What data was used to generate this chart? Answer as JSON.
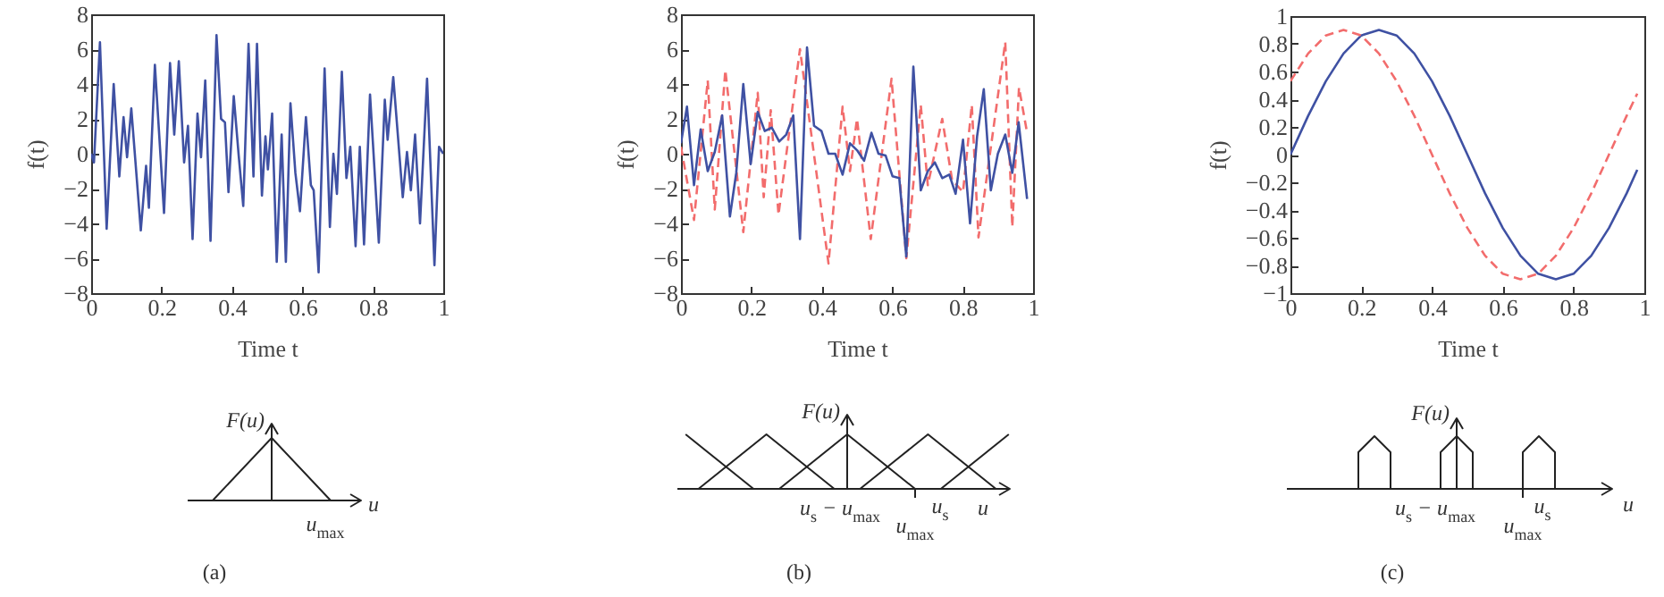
{
  "chart_data": [
    {
      "type": "line",
      "xlabel": "Time t",
      "ylabel": "f(t)",
      "xlim": [
        0,
        1
      ],
      "ylim": [
        -8,
        8
      ],
      "xticks": [
        0,
        0.2,
        0.4,
        0.6,
        0.8,
        1
      ],
      "yticks": [
        -8,
        -6,
        -4,
        -2,
        0,
        2,
        4,
        6,
        8
      ],
      "grid": false,
      "series": [
        {
          "color": "#3f51a3",
          "line_style": "solid",
          "x": [
            0,
            0.008,
            0.025,
            0.044,
            0.064,
            0.08,
            0.092,
            0.102,
            0.114,
            0.141,
            0.156,
            0.164,
            0.181,
            0.207,
            0.224,
            0.236,
            0.249,
            0.264,
            0.275,
            0.288,
            0.302,
            0.312,
            0.324,
            0.339,
            0.356,
            0.369,
            0.38,
            0.39,
            0.405,
            0.419,
            0.432,
            0.447,
            0.461,
            0.471,
            0.485,
            0.495,
            0.502,
            0.514,
            0.527,
            0.541,
            0.553,
            0.566,
            0.58,
            0.593,
            0.61,
            0.624,
            0.632,
            0.646,
            0.663,
            0.678,
            0.688,
            0.698,
            0.712,
            0.725,
            0.736,
            0.751,
            0.763,
            0.775,
            0.792,
            0.8,
            0.817,
            0.834,
            0.842,
            0.858,
            0.885,
            0.897,
            0.908,
            0.92,
            0.934,
            0.954,
            0.975,
            0.988,
            1
          ],
          "values": [
            0,
            -0.5,
            6.4,
            -4.3,
            4.0,
            -1.3,
            2.1,
            -0.2,
            2.6,
            -4.4,
            -0.7,
            -3.1,
            5.1,
            -3.4,
            5.2,
            1.1,
            5.3,
            -0.5,
            1.6,
            -4.9,
            2.3,
            -0.2,
            4.2,
            -5.0,
            6.8,
            2.0,
            1.8,
            -2.2,
            3.3,
            -0.1,
            -3.0,
            6.3,
            -1.3,
            6.3,
            -2.4,
            1.0,
            -0.9,
            2.3,
            -6.2,
            1.1,
            -6.2,
            2.9,
            -1.1,
            -3.3,
            2.1,
            -1.8,
            -2.1,
            -6.8,
            4.9,
            -4.2,
            0,
            -2.3,
            4.7,
            -1.4,
            0.4,
            -5.3,
            0.4,
            -5.2,
            3.4,
            0.7,
            -5.1,
            3.1,
            0.8,
            4.4,
            -2.5,
            0.1,
            -2.1,
            1.1,
            -4.0,
            4.3,
            -6.4,
            0.4,
            0
          ]
        }
      ]
    },
    {
      "type": "line",
      "xlabel": "Time t",
      "ylabel": "f(t)",
      "xlim": [
        0,
        1
      ],
      "ylim": [
        -8,
        8
      ],
      "xticks": [
        0,
        0.2,
        0.4,
        0.6,
        0.8,
        1
      ],
      "yticks": [
        -8,
        -6,
        -4,
        -2,
        0,
        2,
        4,
        6,
        8
      ],
      "grid": false,
      "series": [
        {
          "color": "#f26c6c",
          "line_style": "dashed",
          "x": [
            0,
            0.037,
            0.076,
            0.096,
            0.126,
            0.177,
            0.218,
            0.235,
            0.255,
            0.277,
            0.338,
            0.419,
            0.459,
            0.48,
            0.5,
            0.539,
            0.598,
            0.64,
            0.681,
            0.701,
            0.742,
            0.77,
            0.801,
            0.826,
            0.845,
            0.921,
            0.941,
            0.96,
            0.983
          ],
          "values": [
            0.4,
            -3.8,
            4.2,
            -3.2,
            4.8,
            -4.5,
            3.5,
            -2.5,
            2.5,
            -3.5,
            6.0,
            -6.3,
            2.7,
            -1.0,
            2.0,
            -4.9,
            4.3,
            -6.0,
            2.8,
            -1.8,
            2.0,
            -1.5,
            -2.2,
            2.8,
            -4.8,
            6.4,
            -4.2,
            3.8,
            1.2
          ]
        },
        {
          "color": "#3f51a3",
          "line_style": "solid",
          "x": [
            0,
            0.017,
            0.037,
            0.056,
            0.076,
            0.096,
            0.117,
            0.139,
            0.157,
            0.177,
            0.198,
            0.218,
            0.238,
            0.258,
            0.279,
            0.299,
            0.319,
            0.338,
            0.358,
            0.378,
            0.399,
            0.419,
            0.438,
            0.459,
            0.48,
            0.5,
            0.52,
            0.541,
            0.561,
            0.581,
            0.601,
            0.62,
            0.64,
            0.66,
            0.681,
            0.701,
            0.721,
            0.742,
            0.762,
            0.78,
            0.801,
            0.821,
            0.841,
            0.86,
            0.88,
            0.9,
            0.921,
            0.941,
            0.959,
            0.983
          ],
          "values": [
            0.6,
            2.7,
            -1.8,
            1.4,
            -1.0,
            0.1,
            2.2,
            -3.6,
            -1.1,
            4.0,
            -0.6,
            2.4,
            1.3,
            1.5,
            0.7,
            1.1,
            2.2,
            -4.9,
            6.1,
            1.6,
            1.3,
            0,
            0,
            -1.2,
            0.6,
            0.2,
            -0.4,
            1.2,
            0,
            -0.1,
            -1.3,
            -1.4,
            -5.9,
            5.0,
            -2.1,
            -1.0,
            -0.5,
            -1.4,
            -1.2,
            -2.3,
            0.8,
            -4.0,
            1.0,
            3.7,
            -2.1,
            0,
            1.1,
            -1.1,
            1.8,
            -2.6
          ]
        }
      ]
    },
    {
      "type": "line",
      "xlabel": "Time t",
      "ylabel": "f(t)",
      "xlim": [
        0,
        1
      ],
      "ylim": [
        -1,
        1
      ],
      "xticks": [
        0,
        0.2,
        0.4,
        0.6,
        0.8,
        1
      ],
      "yticks": [
        -1,
        -0.8,
        -0.6,
        -0.4,
        -0.2,
        0,
        0.2,
        0.4,
        0.6,
        0.8,
        1
      ],
      "grid": false,
      "series": [
        {
          "color": "#3f51a3",
          "line_style": "solid",
          "x": [
            0,
            0.05,
            0.1,
            0.15,
            0.2,
            0.25,
            0.3,
            0.35,
            0.4,
            0.45,
            0.5,
            0.55,
            0.6,
            0.65,
            0.7,
            0.75,
            0.8,
            0.85,
            0.9,
            0.95,
            0.98
          ],
          "values": [
            0,
            0.28,
            0.53,
            0.73,
            0.86,
            0.9,
            0.86,
            0.73,
            0.53,
            0.28,
            0,
            -0.28,
            -0.53,
            -0.73,
            -0.86,
            -0.9,
            -0.86,
            -0.73,
            -0.53,
            -0.28,
            -0.11
          ]
        },
        {
          "color": "#f26c6c",
          "line_style": "dashed",
          "x": [
            0,
            0.05,
            0.1,
            0.15,
            0.2,
            0.25,
            0.3,
            0.35,
            0.4,
            0.45,
            0.5,
            0.55,
            0.6,
            0.65,
            0.7,
            0.75,
            0.8,
            0.85,
            0.9,
            0.95,
            0.98
          ],
          "values": [
            0.53,
            0.73,
            0.86,
            0.9,
            0.86,
            0.73,
            0.53,
            0.28,
            0,
            -0.28,
            -0.53,
            -0.73,
            -0.86,
            -0.9,
            -0.86,
            -0.73,
            -0.53,
            -0.28,
            0,
            0.28,
            0.44
          ]
        }
      ]
    },
    {
      "type": "other",
      "xlabel": "u",
      "ylabel": "F(u)",
      "annotations": [
        "u$_{max}$",
        "(a)"
      ]
    },
    {
      "type": "other",
      "xlabel": "u",
      "ylabel": "F(u)",
      "annotations": [
        "u$_{s}$ − u$_{max}$",
        "u$_{s}$",
        "u$_{max}$",
        "(b)"
      ]
    },
    {
      "type": "other",
      "xlabel": "u",
      "ylabel": "F(u)",
      "annotations": [
        "u$_{s}$ − u$_{max}$",
        "u$_{s}$",
        "u$_{max}$",
        "(c)"
      ]
    }
  ]
}
